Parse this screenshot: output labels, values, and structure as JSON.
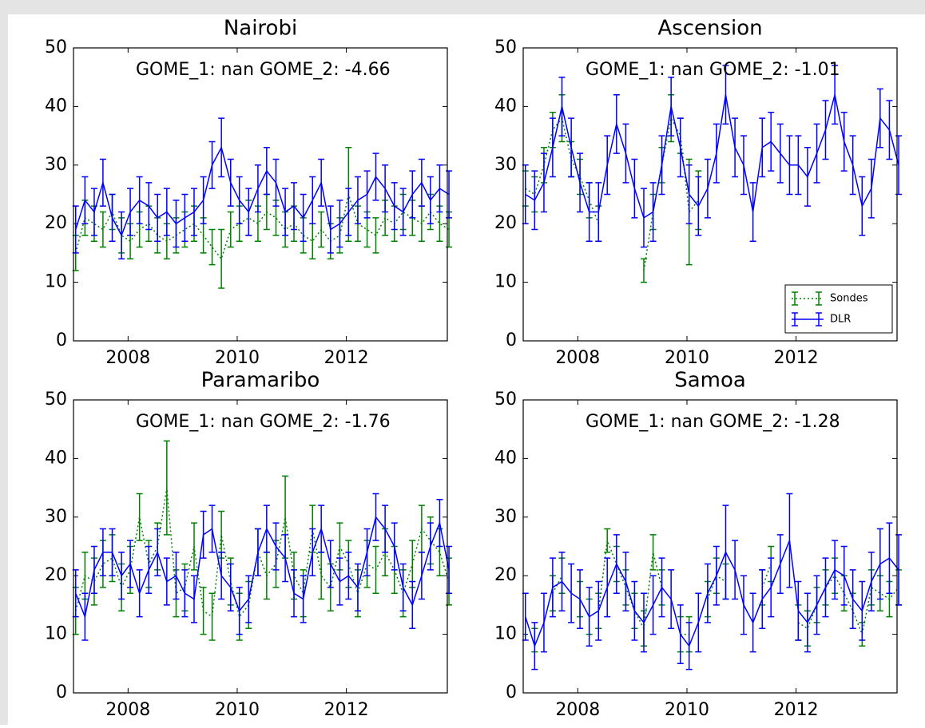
{
  "chart_data": [
    {
      "type": "errorbar",
      "title": "Nairobi",
      "annotation": "GOME_1: nan GOME_2: -4.66",
      "xlim": [
        2007,
        2013.85
      ],
      "xticks": [
        2008,
        2010,
        2012
      ],
      "ylim": [
        0,
        50
      ],
      "yticks": [
        0,
        10,
        20,
        30,
        40,
        50
      ],
      "x": [
        2007.04,
        2007.21,
        2007.38,
        2007.54,
        2007.71,
        2007.88,
        2008.04,
        2008.21,
        2008.38,
        2008.54,
        2008.71,
        2008.88,
        2009.04,
        2009.21,
        2009.38,
        2009.54,
        2009.71,
        2009.88,
        2010.04,
        2010.21,
        2010.38,
        2010.54,
        2010.71,
        2010.88,
        2011.04,
        2011.21,
        2011.38,
        2011.54,
        2011.71,
        2011.88,
        2012.04,
        2012.21,
        2012.38,
        2012.54,
        2012.71,
        2012.88,
        2013.04,
        2013.21,
        2013.38,
        2013.54,
        2013.71,
        2013.88
      ],
      "series": [
        {
          "color": "#008000",
          "dash": "dotted",
          "values": [
            15,
            21,
            20,
            19,
            22,
            18,
            17,
            19,
            20,
            18,
            17,
            18,
            19,
            20,
            18,
            16,
            14,
            19,
            20,
            21,
            20,
            22,
            21,
            19,
            20,
            18,
            17,
            19,
            17,
            18,
            25,
            20,
            19,
            18,
            21,
            20,
            22,
            21,
            20,
            22,
            20,
            19
          ],
          "errors": [
            3,
            3,
            3,
            3,
            3,
            3,
            3,
            3,
            3,
            3,
            3,
            3,
            3,
            3,
            3,
            3,
            5,
            3,
            3,
            3,
            3,
            3,
            3,
            3,
            3,
            3,
            3,
            3,
            3,
            3,
            8,
            3,
            3,
            3,
            3,
            3,
            3,
            3,
            3,
            3,
            3,
            3
          ]
        },
        {
          "color": "#0000ff",
          "dash": "solid",
          "values": [
            19,
            24,
            22,
            27,
            21,
            18,
            22,
            24,
            23,
            21,
            22,
            20,
            21,
            22,
            24,
            30,
            33,
            27,
            24,
            22,
            26,
            29,
            27,
            22,
            23,
            21,
            24,
            27,
            19,
            20,
            22,
            24,
            25,
            28,
            26,
            23,
            22,
            25,
            27,
            24,
            26,
            25
          ],
          "errors": [
            4,
            4,
            4,
            4,
            4,
            4,
            4,
            4,
            4,
            4,
            4,
            4,
            4,
            4,
            4,
            4,
            5,
            4,
            4,
            4,
            4,
            4,
            4,
            4,
            4,
            4,
            4,
            4,
            4,
            4,
            4,
            4,
            4,
            4,
            4,
            4,
            4,
            4,
            4,
            4,
            4,
            4
          ]
        }
      ]
    },
    {
      "type": "errorbar",
      "title": "Ascension",
      "annotation": "GOME_1: nan GOME_2: -1.01",
      "legend": "lower right",
      "xlim": [
        2007,
        2013.85
      ],
      "xticks": [
        2008,
        2010,
        2012
      ],
      "ylim": [
        0,
        50
      ],
      "yticks": [
        0,
        10,
        20,
        30,
        40,
        50
      ],
      "x": [
        2007.04,
        2007.21,
        2007.38,
        2007.54,
        2007.71,
        2007.88,
        2008.04,
        2008.21,
        2008.38,
        2008.54,
        2008.71,
        2008.88,
        2009.04,
        2009.21,
        2009.38,
        2009.54,
        2009.71,
        2009.88,
        2010.04,
        2010.21,
        2010.38,
        2010.54,
        2010.71,
        2010.88,
        2011.04,
        2011.21,
        2011.38,
        2011.54,
        2011.71,
        2011.88,
        2012.04,
        2012.21,
        2012.38,
        2012.54,
        2012.71,
        2012.88,
        2013.04,
        2013.21,
        2013.38,
        2013.54,
        2013.71,
        2013.88
      ],
      "series": [
        {
          "name": "Sondes",
          "color": "#008000",
          "dash": "dotted",
          "values": [
            26,
            25,
            30,
            36,
            38,
            31,
            28,
            24,
            20,
            null,
            null,
            null,
            null,
            12,
            22,
            30,
            38,
            35,
            22,
            24,
            null,
            null,
            null,
            null,
            null,
            null,
            null,
            null,
            null,
            null,
            null,
            null,
            null,
            null,
            null,
            null,
            null,
            null,
            null,
            null,
            null,
            null
          ],
          "errors": [
            3,
            3,
            3,
            3,
            4,
            3,
            3,
            3,
            3,
            null,
            null,
            null,
            null,
            2,
            3,
            3,
            4,
            3,
            9,
            5,
            null,
            null,
            null,
            null,
            null,
            null,
            null,
            null,
            null,
            null,
            null,
            null,
            null,
            null,
            null,
            null,
            null,
            null,
            null,
            null,
            null,
            null
          ]
        },
        {
          "name": "DLR",
          "color": "#0000ff",
          "dash": "solid",
          "values": [
            25,
            24,
            27,
            33,
            40,
            33,
            27,
            22,
            22,
            30,
            37,
            32,
            26,
            21,
            22,
            30,
            40,
            33,
            25,
            23,
            26,
            32,
            42,
            33,
            30,
            22,
            33,
            34,
            32,
            30,
            30,
            28,
            32,
            36,
            42,
            34,
            30,
            23,
            26,
            38,
            36,
            30
          ],
          "errors": [
            5,
            5,
            5,
            5,
            5,
            5,
            5,
            5,
            5,
            5,
            5,
            5,
            5,
            5,
            5,
            5,
            5,
            5,
            5,
            5,
            5,
            5,
            5,
            5,
            5,
            5,
            5,
            5,
            5,
            5,
            5,
            5,
            5,
            5,
            5,
            5,
            5,
            5,
            5,
            5,
            5,
            5
          ]
        }
      ]
    },
    {
      "type": "errorbar",
      "title": "Paramaribo",
      "annotation": "GOME_1: nan GOME_2: -1.76",
      "xlim": [
        2007,
        2013.85
      ],
      "xticks": [
        2008,
        2010,
        2012
      ],
      "ylim": [
        0,
        50
      ],
      "yticks": [
        0,
        10,
        20,
        30,
        40,
        50
      ],
      "x": [
        2007.04,
        2007.21,
        2007.38,
        2007.54,
        2007.71,
        2007.88,
        2008.04,
        2008.21,
        2008.38,
        2008.54,
        2008.71,
        2008.88,
        2009.04,
        2009.21,
        2009.38,
        2009.54,
        2009.71,
        2009.88,
        2010.04,
        2010.21,
        2010.38,
        2010.54,
        2010.71,
        2010.88,
        2011.04,
        2011.21,
        2011.38,
        2011.54,
        2011.71,
        2011.88,
        2012.04,
        2012.21,
        2012.38,
        2012.54,
        2012.71,
        2012.88,
        2013.04,
        2013.21,
        2013.38,
        2013.54,
        2013.71,
        2013.88
      ],
      "series": [
        {
          "color": "#008000",
          "dash": "dotted",
          "values": [
            14,
            20,
            19,
            22,
            23,
            18,
            21,
            30,
            22,
            25,
            35,
            17,
            18,
            25,
            14,
            13,
            27,
            19,
            13,
            15,
            24,
            20,
            22,
            30,
            20,
            17,
            28,
            20,
            18,
            25,
            22,
            17,
            22,
            21,
            24,
            21,
            17,
            22,
            28,
            26,
            24,
            19
          ],
          "errors": [
            4,
            4,
            4,
            4,
            4,
            4,
            4,
            4,
            4,
            4,
            8,
            4,
            4,
            4,
            4,
            4,
            4,
            4,
            4,
            4,
            4,
            4,
            4,
            7,
            4,
            4,
            4,
            4,
            4,
            4,
            4,
            4,
            4,
            4,
            4,
            4,
            4,
            4,
            4,
            4,
            4,
            4
          ]
        },
        {
          "color": "#0000ff",
          "dash": "solid",
          "values": [
            17,
            13,
            21,
            24,
            24,
            20,
            22,
            17,
            21,
            24,
            19,
            20,
            17,
            16,
            27,
            28,
            20,
            18,
            14,
            16,
            24,
            28,
            25,
            23,
            17,
            16,
            24,
            28,
            22,
            19,
            20,
            18,
            24,
            30,
            28,
            25,
            18,
            15,
            20,
            25,
            29,
            21
          ],
          "errors": [
            4,
            4,
            4,
            4,
            4,
            4,
            4,
            4,
            4,
            4,
            4,
            4,
            4,
            4,
            4,
            4,
            4,
            4,
            4,
            4,
            4,
            4,
            4,
            4,
            4,
            4,
            4,
            4,
            4,
            4,
            4,
            4,
            4,
            4,
            4,
            4,
            4,
            4,
            4,
            4,
            4,
            4
          ]
        }
      ]
    },
    {
      "type": "errorbar",
      "title": "Samoa",
      "annotation": "GOME_1: nan GOME_2: -1.28",
      "xlim": [
        2007,
        2013.85
      ],
      "xticks": [
        2008,
        2010,
        2012
      ],
      "ylim": [
        0,
        50
      ],
      "yticks": [
        0,
        10,
        20,
        30,
        40,
        50
      ],
      "x": [
        2007.04,
        2007.21,
        2007.38,
        2007.54,
        2007.71,
        2007.88,
        2008.04,
        2008.21,
        2008.38,
        2008.54,
        2008.71,
        2008.88,
        2009.04,
        2009.21,
        2009.38,
        2009.54,
        2009.71,
        2009.88,
        2010.04,
        2010.21,
        2010.38,
        2010.54,
        2010.71,
        2010.88,
        2011.04,
        2011.21,
        2011.38,
        2011.54,
        2011.71,
        2011.88,
        2012.04,
        2012.21,
        2012.38,
        2012.54,
        2012.71,
        2012.88,
        2013.04,
        2013.21,
        2013.38,
        2013.54,
        2013.71,
        2013.88
      ],
      "series": [
        {
          "color": "#008000",
          "dash": "dotted",
          "values": [
            null,
            9,
            null,
            17,
            20,
            null,
            16,
            13,
            14,
            26,
            22,
            18,
            14,
            11,
            24,
            18,
            null,
            10,
            10,
            null,
            16,
            20,
            19,
            null,
            null,
            null,
            18,
            22,
            null,
            null,
            12,
            11,
            15,
            18,
            20,
            17,
            14,
            10,
            18,
            17,
            16,
            18
          ],
          "errors": [
            null,
            2,
            null,
            3,
            3,
            null,
            3,
            3,
            3,
            2,
            3,
            3,
            3,
            3,
            3,
            3,
            null,
            3,
            3,
            null,
            3,
            3,
            3,
            null,
            null,
            null,
            3,
            3,
            null,
            null,
            3,
            3,
            3,
            3,
            3,
            3,
            3,
            2,
            3,
            3,
            3,
            3
          ]
        },
        {
          "color": "#0000ff",
          "dash": "solid",
          "values": [
            13,
            8,
            12,
            18,
            19,
            17,
            16,
            13,
            14,
            18,
            22,
            19,
            14,
            12,
            15,
            18,
            16,
            10,
            8,
            12,
            17,
            20,
            24,
            21,
            15,
            12,
            16,
            18,
            22,
            26,
            14,
            12,
            15,
            18,
            21,
            20,
            16,
            14,
            19,
            22,
            23,
            21
          ],
          "errors": [
            4,
            4,
            5,
            5,
            5,
            5,
            5,
            5,
            5,
            5,
            5,
            5,
            5,
            5,
            5,
            5,
            5,
            5,
            4,
            5,
            5,
            5,
            8,
            5,
            5,
            5,
            5,
            5,
            5,
            8,
            5,
            5,
            5,
            5,
            5,
            5,
            5,
            5,
            5,
            6,
            6,
            6
          ]
        }
      ]
    }
  ]
}
